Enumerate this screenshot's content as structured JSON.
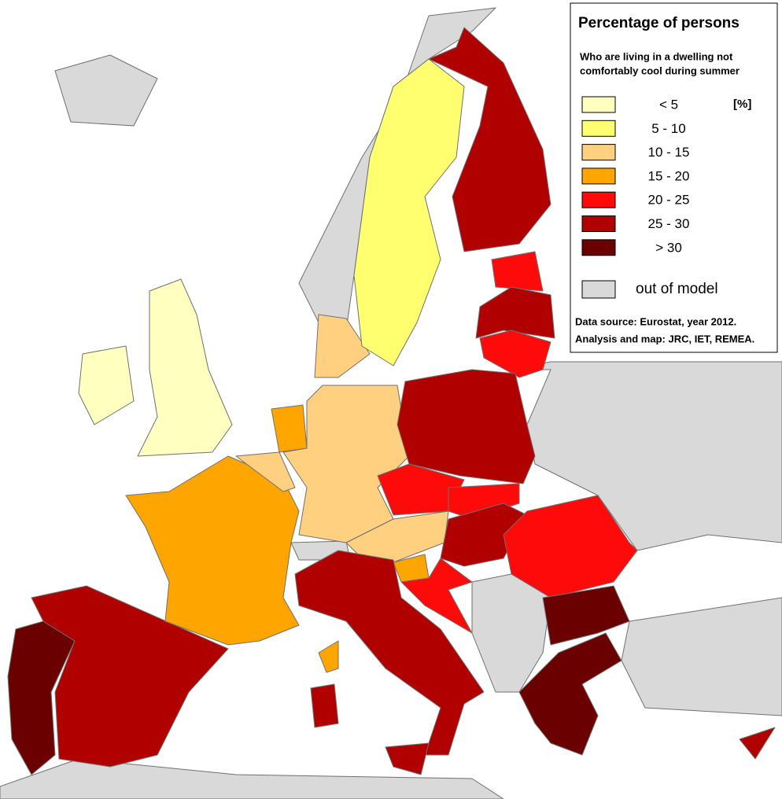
{
  "legend": {
    "title": "Percentage of persons",
    "subtitle": [
      "Who are living in a dwelling not",
      "comfortably cool during summer"
    ],
    "unit": "[%]",
    "items": [
      {
        "label": "< 5",
        "color": "#ffffc0"
      },
      {
        "label": "5 - 10",
        "color": "#ffff70"
      },
      {
        "label": "10 - 15",
        "color": "#ffd080"
      },
      {
        "label": "15 - 20",
        "color": "#ffa500"
      },
      {
        "label": "20 - 25",
        "color": "#ff0a0a"
      },
      {
        "label": "25 - 30",
        "color": "#b00000"
      },
      {
        "label": "> 30",
        "color": "#6b0000"
      }
    ],
    "out_of_model": {
      "label": "out of model",
      "color": "#d9d9d9"
    },
    "notes": [
      "Data source: Eurostat, year 2012.",
      "Analysis and map: JRC, IET, REMEA."
    ]
  }
}
